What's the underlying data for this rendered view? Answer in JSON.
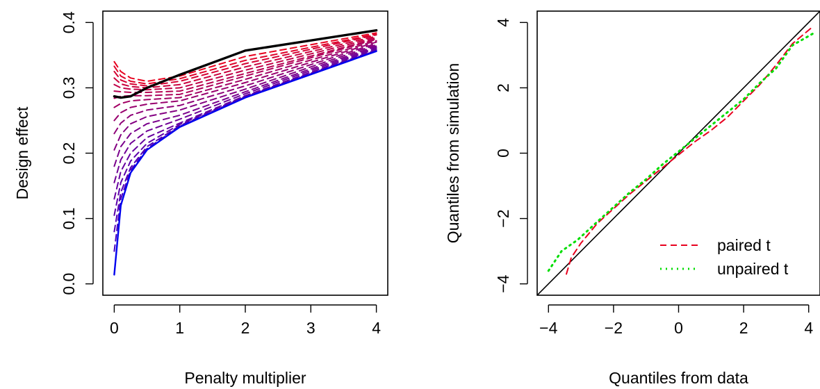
{
  "chart_data": [
    {
      "type": "line",
      "title": "",
      "xlabel": "Penalty multiplier",
      "ylabel": "Design effect",
      "xlim": [
        0,
        4
      ],
      "ylim": [
        0,
        0.4
      ],
      "x_ticks": [
        "0",
        "1",
        "2",
        "3",
        "4"
      ],
      "y_ticks": [
        "0.0",
        "0.1",
        "0.2",
        "0.3",
        "0.4"
      ],
      "grid": false,
      "legend": null,
      "x": [
        0,
        0.1,
        0.25,
        0.5,
        1,
        2,
        4
      ],
      "series": [
        {
          "style": "solid",
          "color": "#000000",
          "values": [
            0.287,
            0.285,
            0.287,
            0.3,
            0.32,
            0.357,
            0.388
          ]
        },
        {
          "style": "solid",
          "color": "#0000ee",
          "values": [
            0.014,
            0.12,
            0.17,
            0.205,
            0.24,
            0.285,
            0.356
          ]
        },
        {
          "style": "dashed",
          "color": "#e8001e",
          "values": [
            0.34,
            0.325,
            0.315,
            0.31,
            0.318,
            0.348,
            0.384
          ]
        },
        {
          "style": "dashed",
          "color": "#de0028",
          "values": [
            0.333,
            0.318,
            0.31,
            0.306,
            0.314,
            0.342,
            0.382
          ]
        },
        {
          "style": "dashed",
          "color": "#d40032",
          "values": [
            0.325,
            0.312,
            0.306,
            0.303,
            0.31,
            0.337,
            0.381
          ]
        },
        {
          "style": "dashed",
          "color": "#ca003c",
          "values": [
            0.315,
            0.306,
            0.302,
            0.3,
            0.305,
            0.332,
            0.379
          ]
        },
        {
          "style": "dashed",
          "color": "#c00046",
          "values": [
            0.305,
            0.3,
            0.298,
            0.297,
            0.3,
            0.327,
            0.377
          ]
        },
        {
          "style": "dashed",
          "color": "#b60050",
          "values": [
            0.295,
            0.294,
            0.293,
            0.293,
            0.295,
            0.322,
            0.375
          ]
        },
        {
          "style": "dashed",
          "color": "#ac005a",
          "values": [
            0.284,
            0.287,
            0.288,
            0.288,
            0.29,
            0.318,
            0.374
          ]
        },
        {
          "style": "dashed",
          "color": "#a20064",
          "values": [
            0.27,
            0.276,
            0.28,
            0.282,
            0.285,
            0.313,
            0.372
          ]
        },
        {
          "style": "dashed",
          "color": "#98006e",
          "values": [
            0.25,
            0.262,
            0.27,
            0.275,
            0.28,
            0.308,
            0.37
          ]
        },
        {
          "style": "dashed",
          "color": "#8e0078",
          "values": [
            0.23,
            0.246,
            0.258,
            0.266,
            0.273,
            0.303,
            0.368
          ]
        },
        {
          "style": "dashed",
          "color": "#840082",
          "values": [
            0.205,
            0.228,
            0.245,
            0.256,
            0.266,
            0.298,
            0.366
          ]
        },
        {
          "style": "dashed",
          "color": "#7a008c",
          "values": [
            0.18,
            0.21,
            0.23,
            0.245,
            0.258,
            0.294,
            0.364
          ]
        },
        {
          "style": "dashed",
          "color": "#700096",
          "values": [
            0.155,
            0.19,
            0.215,
            0.234,
            0.252,
            0.291,
            0.362
          ]
        },
        {
          "style": "dashed",
          "color": "#6600a0",
          "values": [
            0.13,
            0.172,
            0.2,
            0.224,
            0.246,
            0.288,
            0.36
          ]
        },
        {
          "style": "dashed",
          "color": "#5c00aa",
          "values": [
            0.105,
            0.155,
            0.188,
            0.215,
            0.244,
            0.287,
            0.358
          ]
        },
        {
          "style": "dashed",
          "color": "#5200b4",
          "values": [
            0.08,
            0.14,
            0.178,
            0.21,
            0.242,
            0.286,
            0.357
          ]
        },
        {
          "style": "dashed",
          "color": "#4800be",
          "values": [
            0.05,
            0.13,
            0.174,
            0.207,
            0.241,
            0.285,
            0.357
          ]
        }
      ]
    },
    {
      "type": "line",
      "title": "",
      "xlabel": "Quantiles from data",
      "ylabel": "Quantiles from simulation",
      "xlim": [
        -4,
        4
      ],
      "ylim": [
        -4,
        4
      ],
      "x_ticks": [
        "−4",
        "−2",
        "0",
        "2",
        "4"
      ],
      "y_ticks": [
        "−4",
        "−2",
        "0",
        "2",
        "4"
      ],
      "grid": false,
      "legend": "bottom-right",
      "reference_line": {
        "slope": 1,
        "intercept": 0,
        "color": "#000000"
      },
      "series": [
        {
          "name": "paired t",
          "style": "dashed",
          "color": "#e8001e",
          "x": [
            -3.45,
            -3.3,
            -3.0,
            -2.5,
            -2.0,
            -1.5,
            -1.0,
            -0.5,
            0.0,
            0.5,
            1.0,
            1.5,
            2.0,
            2.5,
            3.0,
            3.5,
            4.1
          ],
          "y": [
            -3.7,
            -3.2,
            -2.75,
            -2.15,
            -1.7,
            -1.25,
            -0.85,
            -0.45,
            -0.05,
            0.35,
            0.7,
            1.1,
            1.6,
            2.1,
            2.7,
            3.35,
            3.85
          ]
        },
        {
          "name": "unpaired t",
          "style": "dotted",
          "color": "#00dd00",
          "x": [
            -4.0,
            -3.6,
            -3.1,
            -2.5,
            -2.0,
            -1.5,
            -1.0,
            -0.5,
            0.0,
            0.5,
            1.0,
            1.5,
            2.0,
            2.5,
            3.0,
            3.5,
            4.2
          ],
          "y": [
            -3.6,
            -3.0,
            -2.65,
            -2.1,
            -1.65,
            -1.2,
            -0.8,
            -0.35,
            0.05,
            0.45,
            0.85,
            1.25,
            1.65,
            2.15,
            2.6,
            3.3,
            3.7
          ]
        }
      ]
    }
  ]
}
